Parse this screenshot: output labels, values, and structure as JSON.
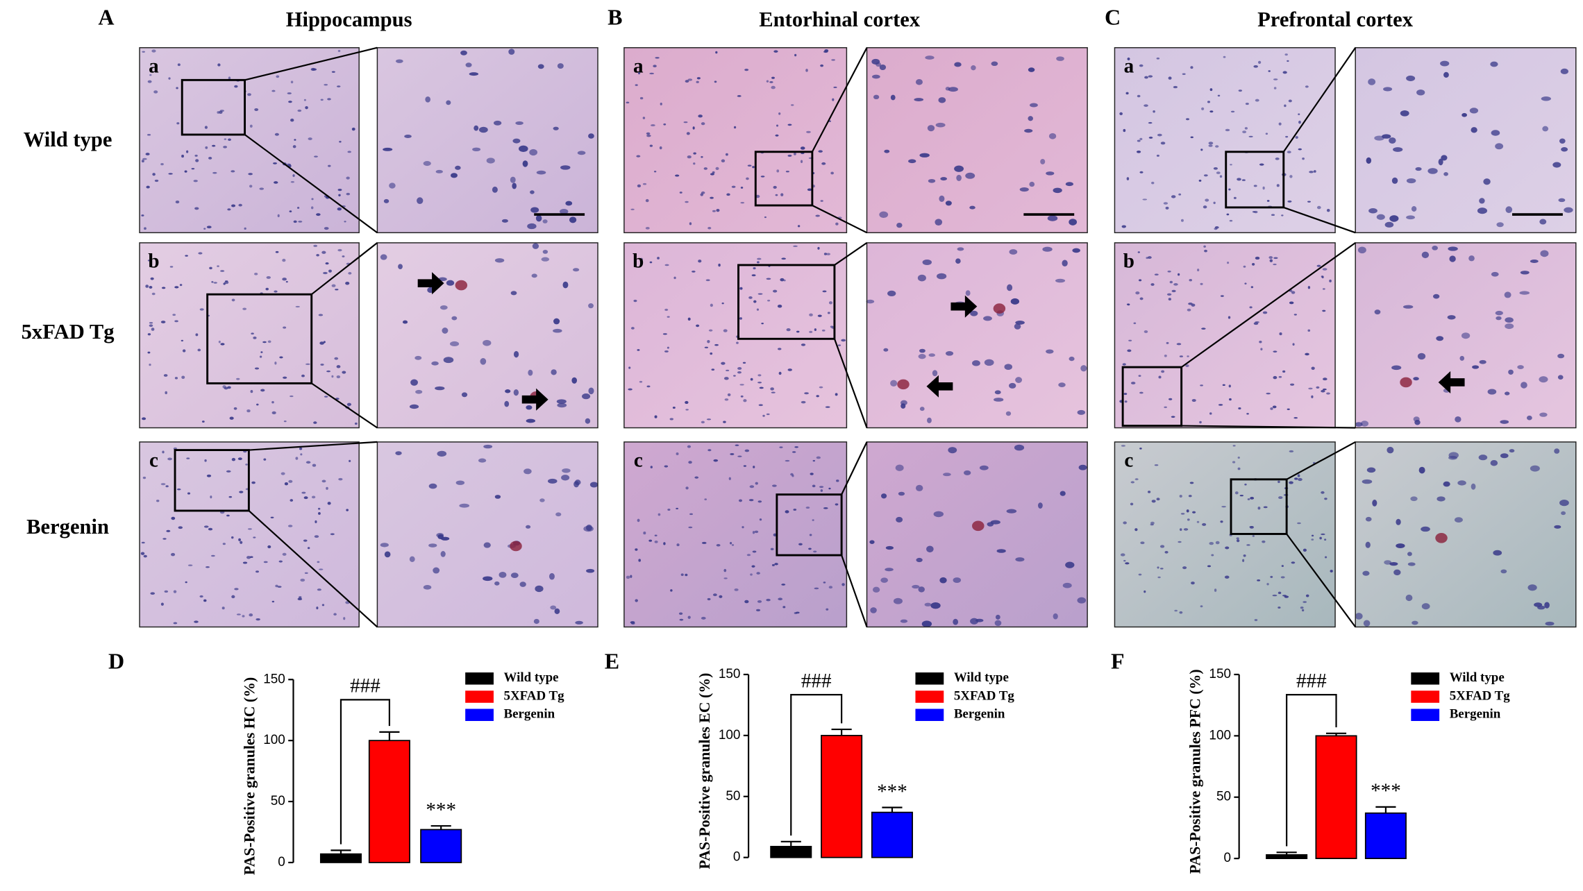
{
  "figure": {
    "panel_labels": [
      "A",
      "B",
      "C",
      "D",
      "E",
      "F"
    ],
    "regions": [
      "Hippocampus",
      "Entorhinal cortex",
      "Prefrontal cortex"
    ],
    "groups": [
      "Wild type",
      "5xFAD Tg",
      "Bergenin"
    ],
    "row_letters": [
      "a",
      "b",
      "c"
    ]
  },
  "chart_data": [
    {
      "type": "bar",
      "ylabel": "PAS-Positive granules HC (%)",
      "categories": [
        "Wild type",
        "5XFAD Tg",
        "Bergenin"
      ],
      "values": [
        7,
        100,
        27
      ],
      "errors": [
        3,
        7,
        3
      ],
      "colors": [
        "#000000",
        "#ff0000",
        "#0000ff"
      ],
      "ylim": [
        0,
        150
      ],
      "yticks": [
        0,
        50,
        100,
        150
      ],
      "annotations": [
        "###",
        "***"
      ]
    },
    {
      "type": "bar",
      "ylabel": "PAS-Positive granules EC (%)",
      "categories": [
        "Wild type",
        "5XFAD Tg",
        "Bergenin"
      ],
      "values": [
        9,
        100,
        37
      ],
      "errors": [
        4,
        5,
        4
      ],
      "colors": [
        "#000000",
        "#ff0000",
        "#0000ff"
      ],
      "ylim": [
        0,
        150
      ],
      "yticks": [
        0,
        50,
        100,
        150
      ],
      "annotations": [
        "###",
        "***"
      ]
    },
    {
      "type": "bar",
      "ylabel": "PAS-Positive granules PFC (%)",
      "categories": [
        "Wild type",
        "5XFAD Tg",
        "Bergenin"
      ],
      "values": [
        3,
        100,
        37
      ],
      "errors": [
        2,
        2,
        5
      ],
      "colors": [
        "#000000",
        "#ff0000",
        "#0000ff"
      ],
      "ylim": [
        0,
        150
      ],
      "yticks": [
        0,
        50,
        100,
        150
      ],
      "annotations": [
        "###",
        "***"
      ]
    }
  ]
}
